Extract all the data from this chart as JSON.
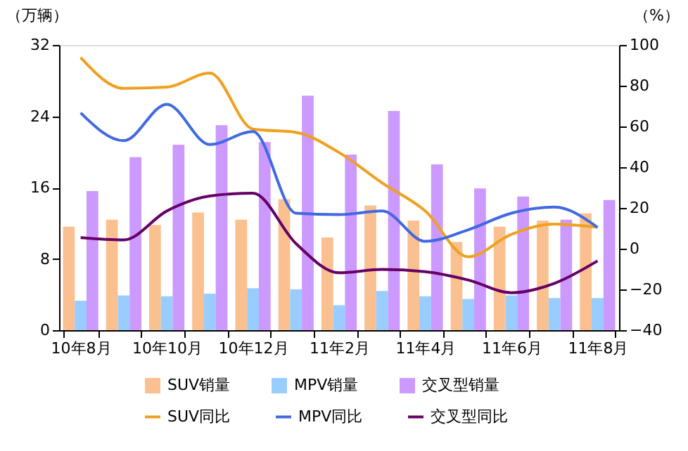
{
  "chart_data": {
    "type": "bar",
    "ylabel": "（万辆）",
    "y2label": "（%）",
    "categories": [
      "10年8月",
      null,
      "10年10月",
      null,
      "10年12月",
      null,
      "11年2月",
      null,
      "11年4月",
      null,
      "11年6月",
      null,
      "11年8月"
    ],
    "series": [
      {
        "name": "SUV销量",
        "color": "#fac090",
        "values": [
          11.6,
          12.4,
          11.8,
          13.2,
          12.4,
          14.7,
          10.4,
          14.0,
          12.3,
          9.9,
          11.6,
          12.3,
          13.1
        ]
      },
      {
        "name": "MPV销量",
        "color": "#99ccff",
        "values": [
          3.3,
          3.9,
          3.8,
          4.1,
          4.7,
          4.6,
          2.8,
          4.4,
          3.8,
          3.5,
          3.9,
          3.6,
          3.6
        ]
      },
      {
        "name": "交叉型销量",
        "color": "#cc99ff",
        "values": [
          15.6,
          19.4,
          20.8,
          23.0,
          21.1,
          26.3,
          19.7,
          24.6,
          18.6,
          15.9,
          15.0,
          12.4,
          14.6
        ]
      },
      {
        "name": "SUV同比",
        "type": "line",
        "axis": "y2",
        "color": "#f0a020",
        "values": [
          93.8,
          78.7,
          79.3,
          86.2,
          58.7,
          57.1,
          47.2,
          32.3,
          18.5,
          -4,
          7,
          12.1,
          10.5
        ]
      },
      {
        "name": "MPV同比",
        "type": "line",
        "axis": "y2",
        "color": "#4169e1",
        "values": [
          66.7,
          53,
          70.9,
          51.1,
          57.5,
          17.4,
          16.7,
          18.5,
          3.6,
          9.3,
          17.4,
          20.4,
          10.5
        ]
      },
      {
        "name": "交叉型同比",
        "type": "line",
        "axis": "y2",
        "color": "#660066",
        "values": [
          5.4,
          4.3,
          18.5,
          25.9,
          27.2,
          2.5,
          -11.8,
          -10.2,
          -11.3,
          -15.4,
          -21.6,
          -17,
          -6
        ]
      }
    ],
    "ylim": [
      0,
      32
    ],
    "yticks": [
      0,
      8,
      16,
      24,
      32
    ],
    "y2lim": [
      -40,
      100
    ],
    "y2ticks": [
      -40,
      -20,
      0,
      20,
      40,
      60,
      80,
      100
    ],
    "grid": false,
    "legend": "bottom"
  }
}
